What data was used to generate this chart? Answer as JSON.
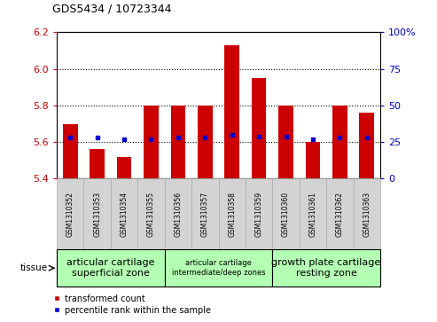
{
  "title": "GDS5434 / 10723344",
  "samples": [
    "GSM1310352",
    "GSM1310353",
    "GSM1310354",
    "GSM1310355",
    "GSM1310356",
    "GSM1310357",
    "GSM1310358",
    "GSM1310359",
    "GSM1310360",
    "GSM1310361",
    "GSM1310362",
    "GSM1310363"
  ],
  "transformed_count": [
    5.7,
    5.56,
    5.52,
    5.8,
    5.8,
    5.8,
    6.13,
    5.95,
    5.8,
    5.6,
    5.8,
    5.76
  ],
  "percentile_rank": [
    28,
    28,
    27,
    27,
    28,
    28,
    30,
    29,
    29,
    27,
    28,
    28
  ],
  "ylim_left": [
    5.4,
    6.2
  ],
  "ylim_right": [
    0,
    100
  ],
  "yticks_left": [
    5.4,
    5.6,
    5.8,
    6.0,
    6.2
  ],
  "yticks_right": [
    0,
    25,
    50,
    75,
    100
  ],
  "ytick_labels_right": [
    "0",
    "25",
    "50",
    "75",
    "100%"
  ],
  "bar_bottom": 5.4,
  "bar_color": "#cc0000",
  "dot_color": "#0000cc",
  "bar_width": 0.55,
  "groups": [
    {
      "label": "articular cartilage\nsuperficial zone",
      "indices": [
        0,
        1,
        2,
        3
      ],
      "color": "#b3ffb3",
      "fontsize": 8
    },
    {
      "label": "articular cartilage\nintermediate/deep zones",
      "indices": [
        4,
        5,
        6,
        7
      ],
      "color": "#b3ffb3",
      "fontsize": 6
    },
    {
      "label": "growth plate cartilage\nresting zone",
      "indices": [
        8,
        9,
        10,
        11
      ],
      "color": "#b3ffb3",
      "fontsize": 8
    }
  ],
  "tissue_label": "tissue",
  "legend_red_label": "transformed count",
  "legend_blue_label": "percentile rank within the sample",
  "left_axis_color": "#cc0000",
  "right_axis_color": "#0000cc",
  "grid_yticks": [
    5.6,
    5.8,
    6.0
  ],
  "tick_area_bg": "#d3d3d3",
  "xlim": [
    -0.5,
    11.5
  ]
}
